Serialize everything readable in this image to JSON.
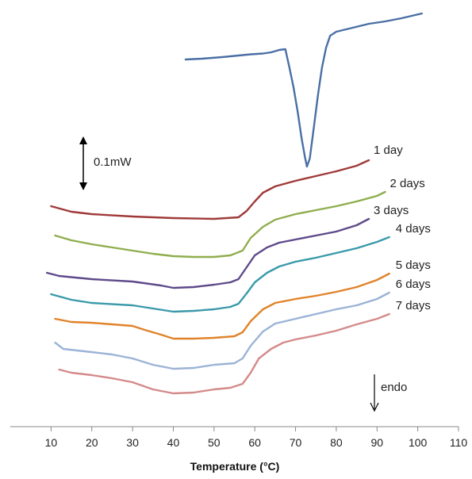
{
  "chart_data": {
    "type": "line",
    "title": "",
    "xlabel": "Temperature (°C)",
    "ylabel": "",
    "xlim": [
      0,
      110
    ],
    "x_ticks": [
      10,
      20,
      30,
      40,
      50,
      60,
      70,
      80,
      90,
      100,
      110
    ],
    "grid": false,
    "annotations": {
      "scale_bar": "0.1mW",
      "direction": "endo"
    },
    "series": [
      {
        "name": "",
        "color": "#4a6fa5",
        "points": [
          [
            43,
            75
          ],
          [
            47,
            74
          ],
          [
            52,
            72
          ],
          [
            56,
            70
          ],
          [
            59,
            68.5
          ],
          [
            62,
            67.5
          ],
          [
            64,
            66
          ],
          [
            66,
            63
          ],
          [
            67.5,
            62
          ],
          [
            68.5,
            85
          ],
          [
            69.5,
            110
          ],
          [
            70.5,
            140
          ],
          [
            71.5,
            175
          ],
          [
            72.3,
            198
          ],
          [
            72.8,
            210
          ],
          [
            73.5,
            200
          ],
          [
            74.5,
            160
          ],
          [
            75.5,
            120
          ],
          [
            76.5,
            85
          ],
          [
            77.5,
            60
          ],
          [
            78.5,
            45
          ],
          [
            80,
            40
          ],
          [
            84,
            35
          ],
          [
            88,
            30
          ],
          [
            92,
            27
          ],
          [
            96,
            23
          ],
          [
            101,
            17
          ]
        ]
      },
      {
        "name": "1 day",
        "color": "#a03a3a",
        "points": [
          [
            10,
            260
          ],
          [
            15,
            267
          ],
          [
            20,
            270
          ],
          [
            30,
            273
          ],
          [
            40,
            275
          ],
          [
            50,
            276
          ],
          [
            56,
            274
          ],
          [
            58,
            266
          ],
          [
            60,
            254
          ],
          [
            62,
            243
          ],
          [
            65,
            235
          ],
          [
            70,
            228
          ],
          [
            75,
            222
          ],
          [
            80,
            216
          ],
          [
            85,
            209
          ],
          [
            88,
            202
          ]
        ]
      },
      {
        "name": "2 days",
        "color": "#8fae4e",
        "points": [
          [
            11,
            297
          ],
          [
            15,
            303
          ],
          [
            20,
            308
          ],
          [
            25,
            312
          ],
          [
            30,
            316
          ],
          [
            35,
            320
          ],
          [
            40,
            323
          ],
          [
            45,
            324
          ],
          [
            50,
            324
          ],
          [
            54,
            322
          ],
          [
            57,
            316
          ],
          [
            59,
            300
          ],
          [
            62,
            286
          ],
          [
            65,
            277
          ],
          [
            70,
            270
          ],
          [
            75,
            265
          ],
          [
            80,
            260
          ],
          [
            85,
            254
          ],
          [
            90,
            247
          ],
          [
            92,
            242
          ]
        ]
      },
      {
        "name": "3 days",
        "color": "#5e4a8a",
        "points": [
          [
            9,
            344
          ],
          [
            12,
            348
          ],
          [
            20,
            352
          ],
          [
            30,
            355
          ],
          [
            37,
            360
          ],
          [
            40,
            363
          ],
          [
            45,
            362
          ],
          [
            50,
            359
          ],
          [
            54,
            356
          ],
          [
            56,
            352
          ],
          [
            58,
            337
          ],
          [
            60,
            322
          ],
          [
            63,
            312
          ],
          [
            66,
            306
          ],
          [
            70,
            302
          ],
          [
            75,
            297
          ],
          [
            80,
            292
          ],
          [
            85,
            284
          ],
          [
            88,
            276
          ]
        ]
      },
      {
        "name": "4 days",
        "color": "#3a9aaa",
        "points": [
          [
            10,
            371
          ],
          [
            15,
            378
          ],
          [
            20,
            382
          ],
          [
            30,
            385
          ],
          [
            35,
            389
          ],
          [
            40,
            393
          ],
          [
            45,
            392
          ],
          [
            50,
            390
          ],
          [
            54,
            387
          ],
          [
            56,
            383
          ],
          [
            58,
            370
          ],
          [
            60,
            356
          ],
          [
            63,
            344
          ],
          [
            66,
            336
          ],
          [
            70,
            330
          ],
          [
            75,
            325
          ],
          [
            80,
            319
          ],
          [
            85,
            313
          ],
          [
            90,
            305
          ],
          [
            93,
            299
          ]
        ]
      },
      {
        "name": "5 days",
        "color": "#e0832a",
        "points": [
          [
            11,
            402
          ],
          [
            15,
            406
          ],
          [
            20,
            407
          ],
          [
            25,
            409
          ],
          [
            30,
            411
          ],
          [
            33,
            416
          ],
          [
            37,
            422
          ],
          [
            40,
            427
          ],
          [
            45,
            427
          ],
          [
            50,
            426
          ],
          [
            55,
            424
          ],
          [
            57,
            419
          ],
          [
            59,
            405
          ],
          [
            62,
            390
          ],
          [
            65,
            382
          ],
          [
            70,
            377
          ],
          [
            75,
            373
          ],
          [
            80,
            368
          ],
          [
            85,
            362
          ],
          [
            90,
            353
          ],
          [
            93,
            345
          ]
        ]
      },
      {
        "name": "6 days",
        "color": "#9bb3d6",
        "points": [
          [
            11,
            432
          ],
          [
            13,
            440
          ],
          [
            20,
            444
          ],
          [
            25,
            447
          ],
          [
            30,
            452
          ],
          [
            35,
            460
          ],
          [
            40,
            465
          ],
          [
            45,
            464
          ],
          [
            50,
            460
          ],
          [
            55,
            458
          ],
          [
            57,
            452
          ],
          [
            59,
            436
          ],
          [
            62,
            418
          ],
          [
            65,
            408
          ],
          [
            70,
            402
          ],
          [
            75,
            396
          ],
          [
            80,
            390
          ],
          [
            85,
            385
          ],
          [
            90,
            377
          ],
          [
            93,
            369
          ]
        ]
      },
      {
        "name": "7 days",
        "color": "#d48a8a",
        "points": [
          [
            12,
            466
          ],
          [
            15,
            470
          ],
          [
            20,
            473
          ],
          [
            25,
            477
          ],
          [
            30,
            482
          ],
          [
            35,
            491
          ],
          [
            40,
            496
          ],
          [
            45,
            495
          ],
          [
            50,
            491
          ],
          [
            54,
            489
          ],
          [
            57,
            484
          ],
          [
            59,
            470
          ],
          [
            61,
            452
          ],
          [
            64,
            440
          ],
          [
            67,
            432
          ],
          [
            70,
            428
          ],
          [
            75,
            423
          ],
          [
            80,
            417
          ],
          [
            85,
            409
          ],
          [
            90,
            402
          ],
          [
            93,
            396
          ]
        ]
      }
    ]
  }
}
